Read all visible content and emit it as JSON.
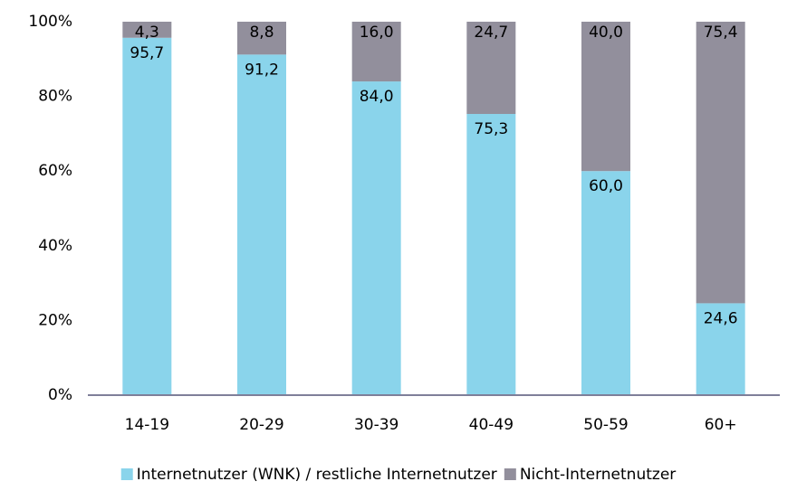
{
  "chart_data": {
    "type": "stacked_bar",
    "categories": [
      "14-19",
      "20-29",
      "30-39",
      "40-49",
      "50-59",
      "60+"
    ],
    "series": [
      {
        "name": "Internetnutzer (WNK) / restliche Internetnutzer",
        "color": "#8ad4eb",
        "values": [
          95.7,
          91.2,
          84.0,
          75.3,
          60.0,
          24.6
        ],
        "value_labels": [
          "95,7",
          "91,2",
          "84,0",
          "75,3",
          "60,0",
          "24,6"
        ]
      },
      {
        "name": "Nicht-Internetnutzer",
        "color": "#928f9c",
        "values": [
          4.3,
          8.8,
          16.0,
          24.7,
          40.0,
          75.4
        ],
        "value_labels": [
          "4,3",
          "8,8",
          "16,0",
          "24,7",
          "40,0",
          "75,4"
        ]
      }
    ],
    "ylim": [
      0,
      100
    ],
    "yticks": [
      {
        "value": 0,
        "label": "0%"
      },
      {
        "value": 20,
        "label": "20%"
      },
      {
        "value": 40,
        "label": "40%"
      },
      {
        "value": 60,
        "label": "60%"
      },
      {
        "value": 80,
        "label": "80%"
      },
      {
        "value": 100,
        "label": "100%"
      }
    ],
    "grid": false,
    "legend": "bottom"
  }
}
